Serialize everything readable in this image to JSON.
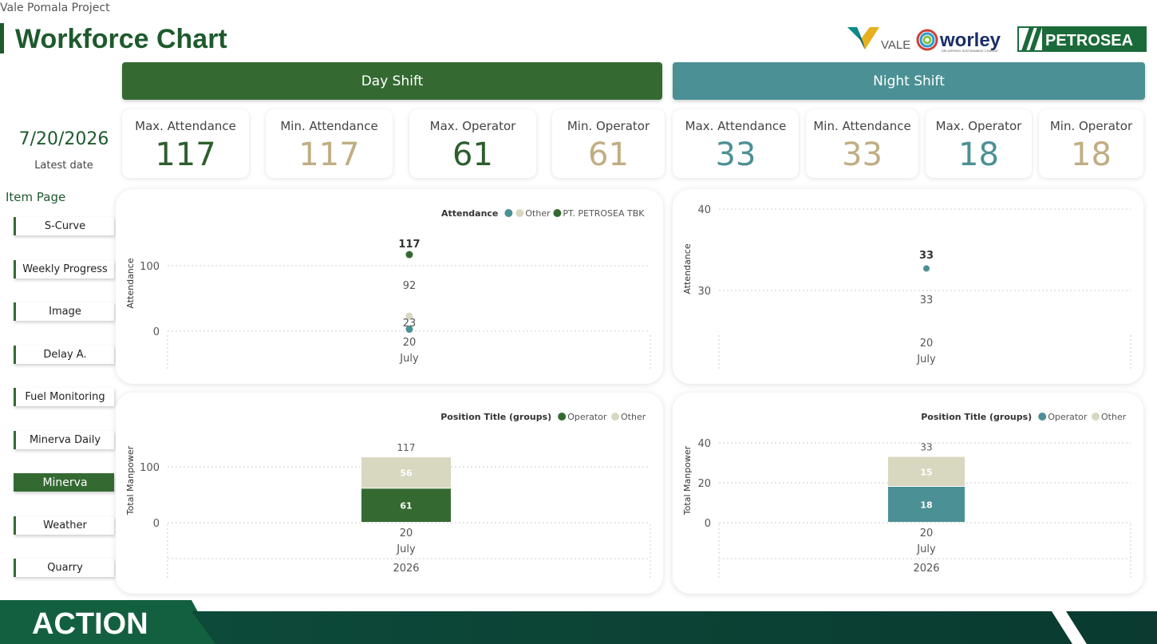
{
  "header": {
    "project": "Vale Pomala Project",
    "title": "Workforce Chart"
  },
  "logos": {
    "vale": "VALE",
    "worley": "worley",
    "worley_tag": "DELIVERING SUSTAINABLE CHANGE",
    "petrosea": "PETROSEA"
  },
  "shifts": {
    "day": "Day Shift",
    "night": "Night Shift"
  },
  "cards": [
    {
      "label": "Max. Attendance",
      "value": "117",
      "color": "#2d5e2d"
    },
    {
      "label": "Min. Attendance",
      "value": "117",
      "color": "#c0ad82"
    },
    {
      "label": "Max. Operator",
      "value": "61",
      "color": "#2d5e2d"
    },
    {
      "label": "Min. Operator",
      "value": "61",
      "color": "#c0ad82"
    },
    {
      "label": "Max. Attendance",
      "value": "33",
      "color": "#4b9094"
    },
    {
      "label": "Min. Attendance",
      "value": "33",
      "color": "#c0ad82"
    },
    {
      "label": "Max. Operator",
      "value": "18",
      "color": "#4b9094"
    },
    {
      "label": "Min. Operator",
      "value": "18",
      "color": "#c0ad82"
    }
  ],
  "sidebar": {
    "date": "7/20/2026",
    "date_label": "Latest date",
    "item_page": "Item Page",
    "items": [
      {
        "label": "S-Curve"
      },
      {
        "label": "Weekly Progress"
      },
      {
        "label": "Image"
      },
      {
        "label": "Delay A."
      },
      {
        "label": "Fuel Monitoring"
      },
      {
        "label": "Minerva Daily"
      },
      {
        "label": "Minerva",
        "active": true
      },
      {
        "label": "Weather"
      },
      {
        "label": "Quarry"
      }
    ]
  },
  "colors": {
    "green": "#346a32",
    "teal": "#4b9094",
    "beige": "#d8d7c0",
    "blue_dot": "#4b9094"
  },
  "chart_data": [
    {
      "type": "scatter",
      "legend_title": "Attendance",
      "ylabel": "Attendance",
      "yticks": [
        0,
        100
      ],
      "x": [
        "20"
      ],
      "x_sub": "July",
      "legend_position": "top-right",
      "series": [
        {
          "name": "",
          "color": "#4b9094",
          "values": [
            3
          ],
          "label": "20"
        },
        {
          "name": "Other",
          "color": "#d8d7c0",
          "values": [
            23
          ],
          "label": "23"
        },
        {
          "name": "PT. PETROSEA TBK",
          "color": "#346a32",
          "values": [
            117
          ],
          "label": "117"
        }
      ],
      "inner_label": "92"
    },
    {
      "type": "scatter",
      "ylabel": "Attendance",
      "yticks": [
        30,
        40
      ],
      "x": [
        "20"
      ],
      "x_sub": "July",
      "series": [
        {
          "name": "",
          "color": "#4b9094",
          "values": [
            33
          ],
          "label": "33"
        }
      ],
      "inner_label": "33"
    },
    {
      "type": "bar",
      "legend_title": "Position Title (groups)",
      "ylabel": "Total Manpower",
      "yticks": [
        0,
        100
      ],
      "categories": [
        "20"
      ],
      "x_sub": "July",
      "x_year": "2026",
      "legend_position": "top-right",
      "series": [
        {
          "name": "Operator",
          "color": "#346a32",
          "values": [
            61
          ]
        },
        {
          "name": "Other",
          "color": "#d8d7c0",
          "values": [
            56
          ]
        }
      ],
      "total": "117"
    },
    {
      "type": "bar",
      "legend_title": "Position Title (groups)",
      "ylabel": "Total Manpower",
      "yticks": [
        0,
        20,
        40
      ],
      "categories": [
        "20"
      ],
      "x_sub": "July",
      "x_year": "2026",
      "legend_position": "top-right",
      "series": [
        {
          "name": "Operator",
          "color": "#4b9094",
          "values": [
            18
          ]
        },
        {
          "name": "Other",
          "color": "#d8d7c0",
          "values": [
            15
          ]
        }
      ],
      "total": "33"
    }
  ],
  "footer": {
    "brand": "ACTION"
  }
}
